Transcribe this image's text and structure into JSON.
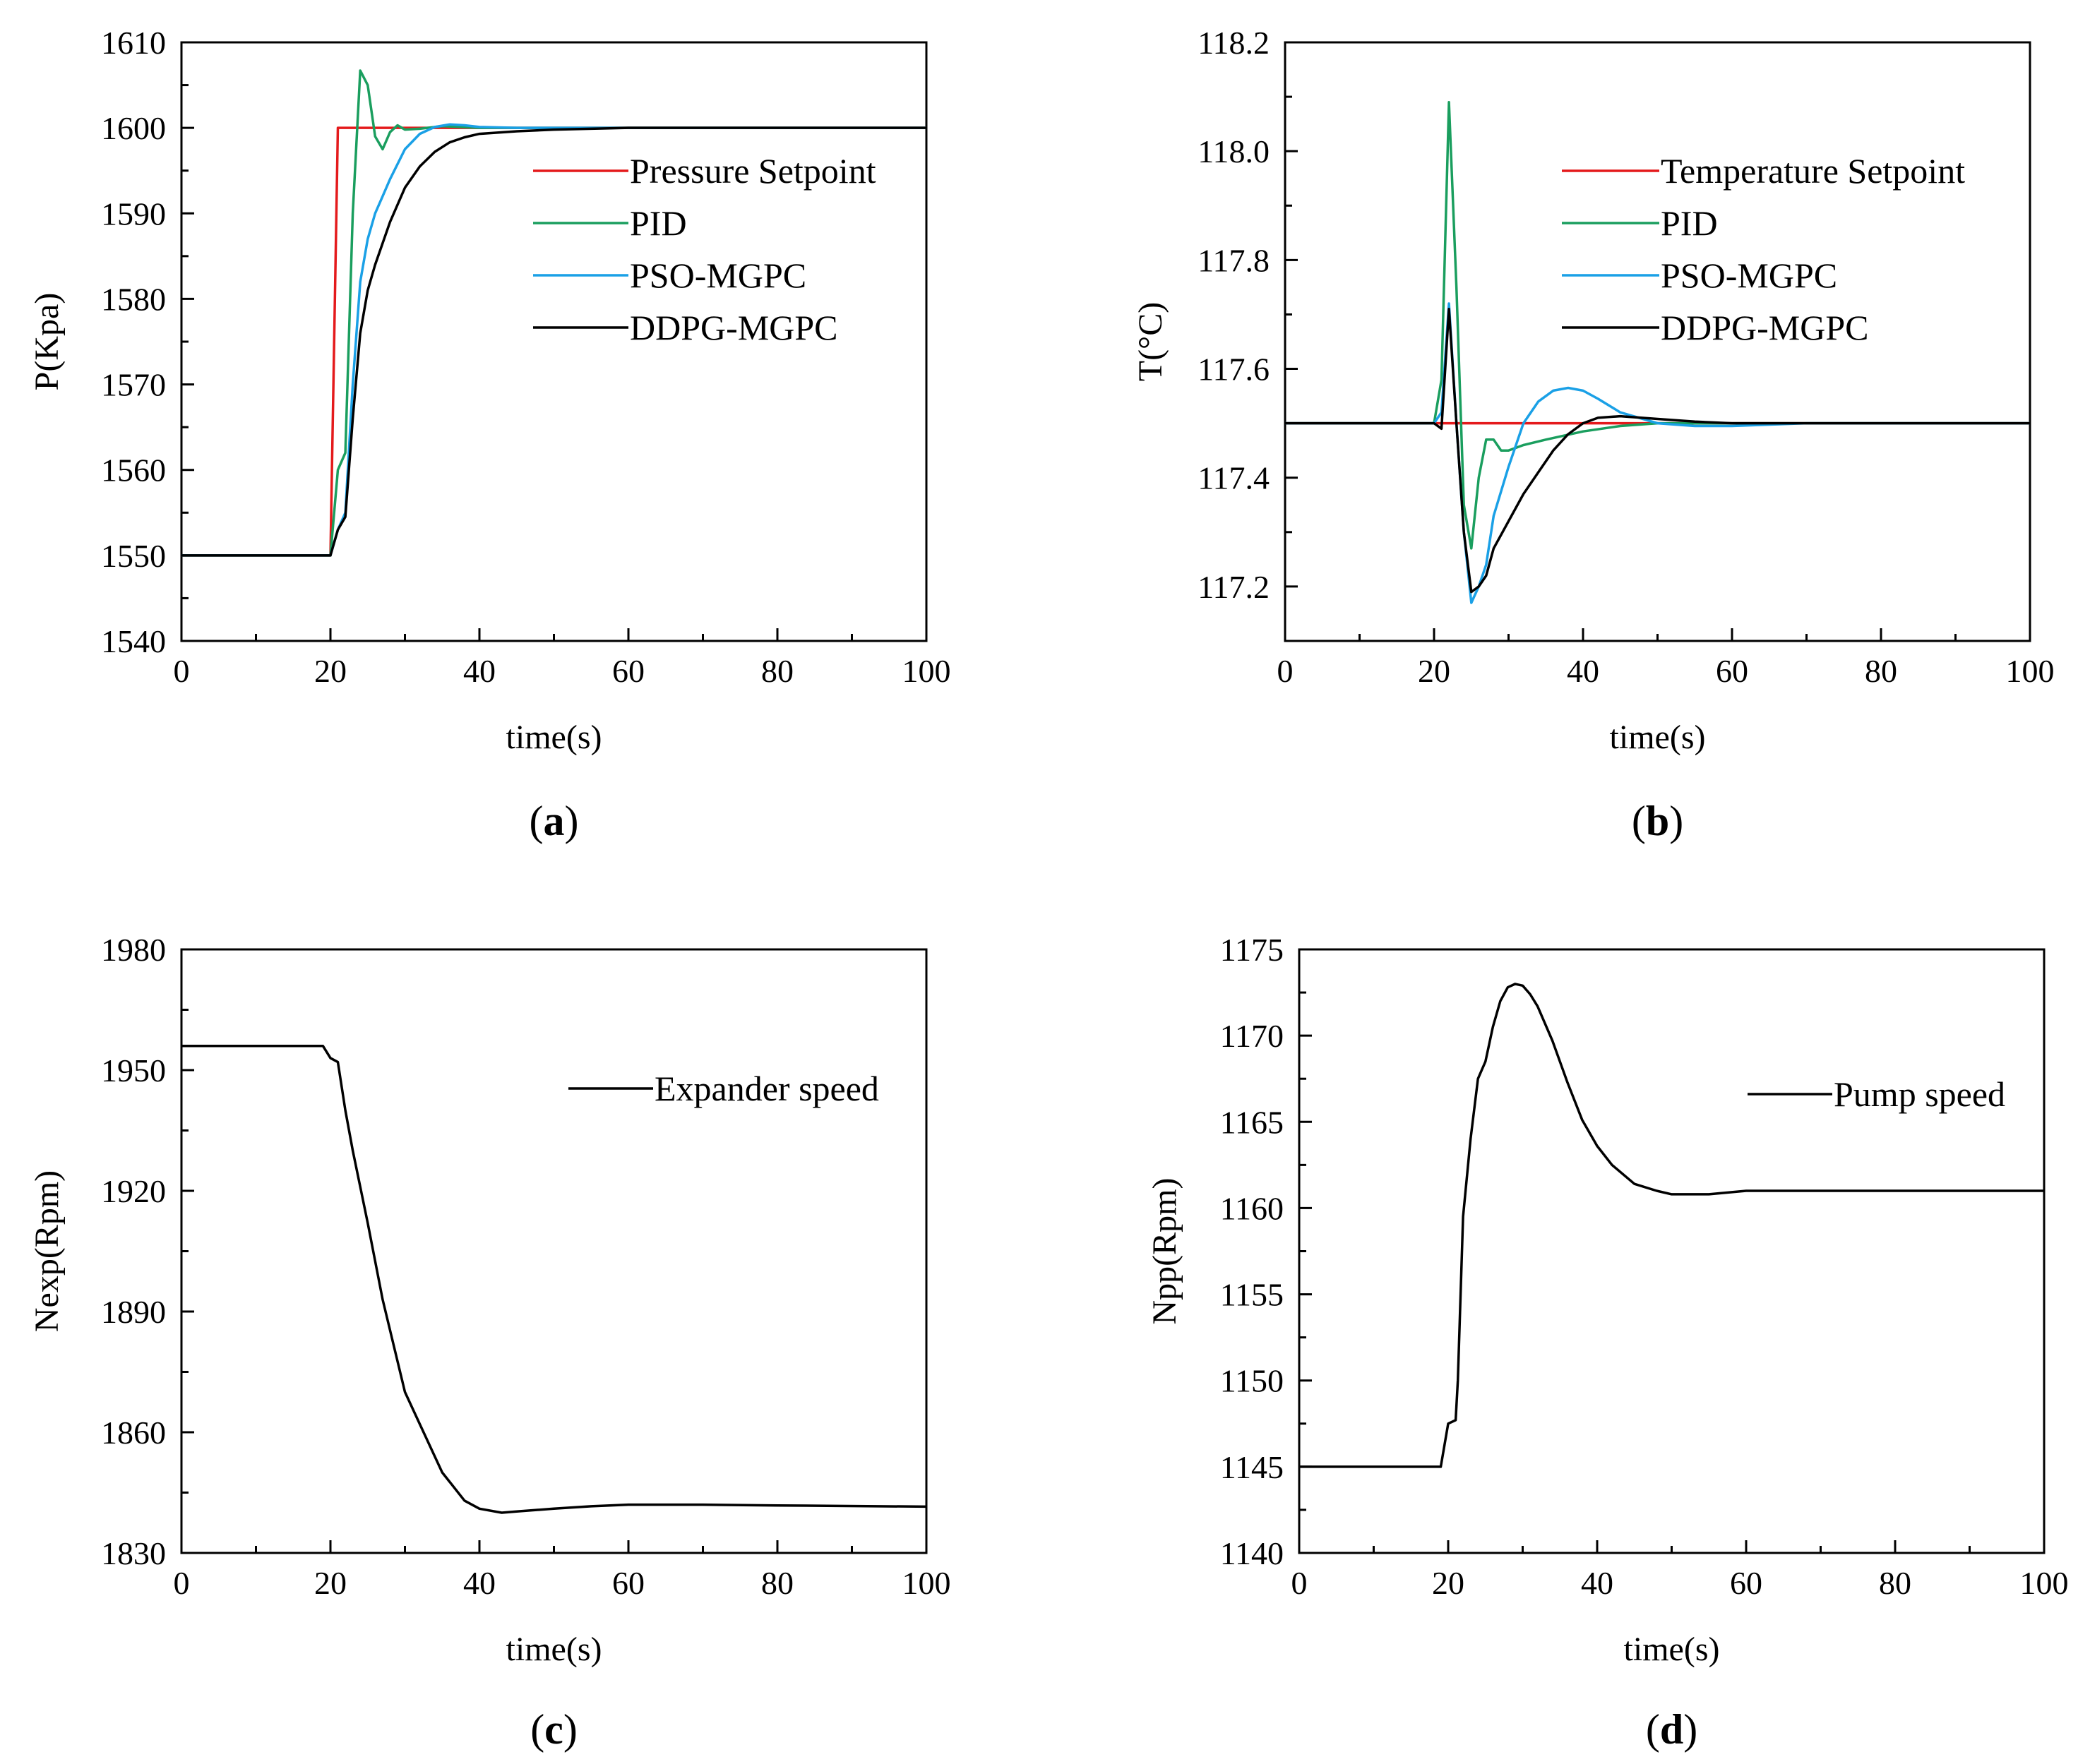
{
  "figure": {
    "panels": [
      "a",
      "b",
      "c",
      "d"
    ]
  },
  "chart_data": [
    {
      "id": "a",
      "type": "line",
      "caption_letter": "a",
      "xlabel": "time(s)",
      "ylabel": "P(Kpa)",
      "xlim": [
        0,
        100
      ],
      "ylim": [
        1540,
        1610
      ],
      "xticks": [
        0,
        20,
        40,
        60,
        80,
        100
      ],
      "yticks": [
        1540,
        1550,
        1560,
        1570,
        1580,
        1590,
        1600,
        1610
      ],
      "legend_position": "center-right",
      "series": [
        {
          "name": "Pressure Setpoint",
          "color": "#e41a1c",
          "x": [
            0,
            20,
            21,
            100
          ],
          "y": [
            1550,
            1550,
            1600,
            1600
          ]
        },
        {
          "name": "PID",
          "color": "#1a9e5e",
          "x": [
            0,
            20,
            21,
            22,
            23,
            24,
            25,
            26,
            27,
            28,
            29,
            30,
            32,
            35,
            40,
            50,
            60,
            100
          ],
          "y": [
            1550,
            1550,
            1560,
            1562,
            1590,
            1606.7,
            1605,
            1599,
            1597.5,
            1599.5,
            1600.3,
            1599.8,
            1599.9,
            1600.2,
            1600,
            1600,
            1600,
            1600
          ]
        },
        {
          "name": "PSO-MGPC",
          "color": "#1aa0e6",
          "x": [
            0,
            20,
            21,
            22,
            23,
            24,
            25,
            26,
            27,
            28,
            30,
            32,
            34,
            36,
            38,
            40,
            45,
            50,
            60,
            100
          ],
          "y": [
            1550,
            1550,
            1553,
            1555,
            1570,
            1582,
            1587,
            1590,
            1592,
            1594,
            1597.5,
            1599.3,
            1600.1,
            1600.4,
            1600.3,
            1600.1,
            1600,
            1600,
            1600,
            1600
          ]
        },
        {
          "name": "DDPG-MGPC",
          "color": "#000000",
          "x": [
            0,
            20,
            21,
            22,
            23,
            24,
            25,
            26,
            28,
            30,
            32,
            34,
            36,
            38,
            40,
            45,
            50,
            60,
            100
          ],
          "y": [
            1550,
            1550,
            1553,
            1554.5,
            1566,
            1576,
            1581,
            1584,
            1589,
            1593,
            1595.5,
            1597.2,
            1598.3,
            1598.9,
            1599.3,
            1599.6,
            1599.8,
            1600,
            1600
          ]
        }
      ]
    },
    {
      "id": "b",
      "type": "line",
      "caption_letter": "b",
      "xlabel": "time(s)",
      "ylabel": "T(°C)",
      "xlim": [
        0,
        100
      ],
      "ylim": [
        117.1,
        118.2
      ],
      "xticks": [
        0,
        20,
        40,
        60,
        80,
        100
      ],
      "yticks": [
        117.2,
        117.4,
        117.6,
        117.8,
        118.0,
        118.2
      ],
      "ytick_labels": [
        "117.2",
        "117.4",
        "117.6",
        "117.8",
        "118.0",
        "118.2"
      ],
      "legend_position": "center-right",
      "series": [
        {
          "name": "Temperature Setpoint",
          "color": "#e41a1c",
          "x": [
            0,
            100
          ],
          "y": [
            117.5,
            117.5
          ]
        },
        {
          "name": "PID",
          "color": "#1a9e5e",
          "x": [
            0,
            20,
            21,
            22,
            23,
            24,
            25,
            26,
            27,
            28,
            29,
            30,
            32,
            35,
            40,
            45,
            50,
            55,
            60,
            100
          ],
          "y": [
            117.5,
            117.5,
            117.58,
            118.09,
            117.75,
            117.35,
            117.27,
            117.4,
            117.47,
            117.47,
            117.45,
            117.45,
            117.46,
            117.47,
            117.485,
            117.495,
            117.5,
            117.5,
            117.5,
            117.5
          ]
        },
        {
          "name": "PSO-MGPC",
          "color": "#1aa0e6",
          "x": [
            0,
            20,
            21,
            22,
            23,
            24,
            25,
            26,
            27,
            28,
            30,
            32,
            34,
            36,
            38,
            40,
            42,
            45,
            50,
            55,
            60,
            70,
            100
          ],
          "y": [
            117.5,
            117.5,
            117.52,
            117.72,
            117.5,
            117.3,
            117.17,
            117.2,
            117.24,
            117.33,
            117.42,
            117.5,
            117.54,
            117.56,
            117.565,
            117.56,
            117.545,
            117.52,
            117.5,
            117.495,
            117.495,
            117.5,
            117.5
          ]
        },
        {
          "name": "DDPG-MGPC",
          "color": "#000000",
          "x": [
            0,
            20,
            21,
            22,
            23,
            24,
            25,
            26,
            27,
            28,
            30,
            32,
            34,
            36,
            38,
            40,
            42,
            45,
            50,
            55,
            60,
            70,
            100
          ],
          "y": [
            117.5,
            117.5,
            117.49,
            117.71,
            117.5,
            117.3,
            117.19,
            117.2,
            117.22,
            117.27,
            117.32,
            117.37,
            117.41,
            117.45,
            117.48,
            117.5,
            117.51,
            117.513,
            117.508,
            117.503,
            117.5,
            117.5,
            117.5
          ]
        }
      ]
    },
    {
      "id": "c",
      "type": "line",
      "caption_letter": "c",
      "xlabel": "time(s)",
      "ylabel": "Nexp(Rpm)",
      "xlim": [
        0,
        100
      ],
      "ylim": [
        1830,
        1980
      ],
      "xticks": [
        0,
        20,
        40,
        60,
        80,
        100
      ],
      "yticks": [
        1830,
        1860,
        1890,
        1920,
        1950,
        1980
      ],
      "legend_position": "top-right",
      "series": [
        {
          "name": "Expander speed",
          "color": "#000000",
          "x": [
            0,
            19,
            20,
            21,
            22,
            23,
            25,
            27,
            30,
            32,
            35,
            38,
            40,
            43,
            45,
            50,
            55,
            60,
            70,
            80,
            100
          ],
          "y": [
            1956,
            1956,
            1953,
            1952,
            1940,
            1930,
            1912,
            1893,
            1870,
            1862,
            1850,
            1843,
            1841,
            1840,
            1840.3,
            1841,
            1841.6,
            1842,
            1842,
            1841.8,
            1841.5
          ]
        }
      ]
    },
    {
      "id": "d",
      "type": "line",
      "caption_letter": "d",
      "xlabel": "time(s)",
      "ylabel": "Npp(Rpm)",
      "xlim": [
        0,
        100
      ],
      "ylim": [
        1140,
        1175
      ],
      "xticks": [
        0,
        20,
        40,
        60,
        80,
        100
      ],
      "yticks": [
        1140,
        1145,
        1150,
        1155,
        1160,
        1165,
        1170,
        1175
      ],
      "legend_position": "top-right",
      "series": [
        {
          "name": "Pump speed",
          "color": "#000000",
          "x": [
            0,
            19,
            20,
            21,
            21.3,
            22,
            23,
            24,
            25,
            26,
            27,
            28,
            29,
            30,
            31,
            32,
            34,
            36,
            38,
            40,
            42,
            45,
            48,
            50,
            53,
            55,
            60,
            70,
            80,
            100
          ],
          "y": [
            1145,
            1145,
            1147.5,
            1147.7,
            1150,
            1159.5,
            1164,
            1167.5,
            1168.5,
            1170.5,
            1172,
            1172.8,
            1173,
            1172.9,
            1172.4,
            1171.7,
            1169.7,
            1167.3,
            1165.1,
            1163.6,
            1162.5,
            1161.4,
            1161,
            1160.8,
            1160.8,
            1160.8,
            1161,
            1161,
            1161,
            1161
          ]
        }
      ]
    }
  ]
}
